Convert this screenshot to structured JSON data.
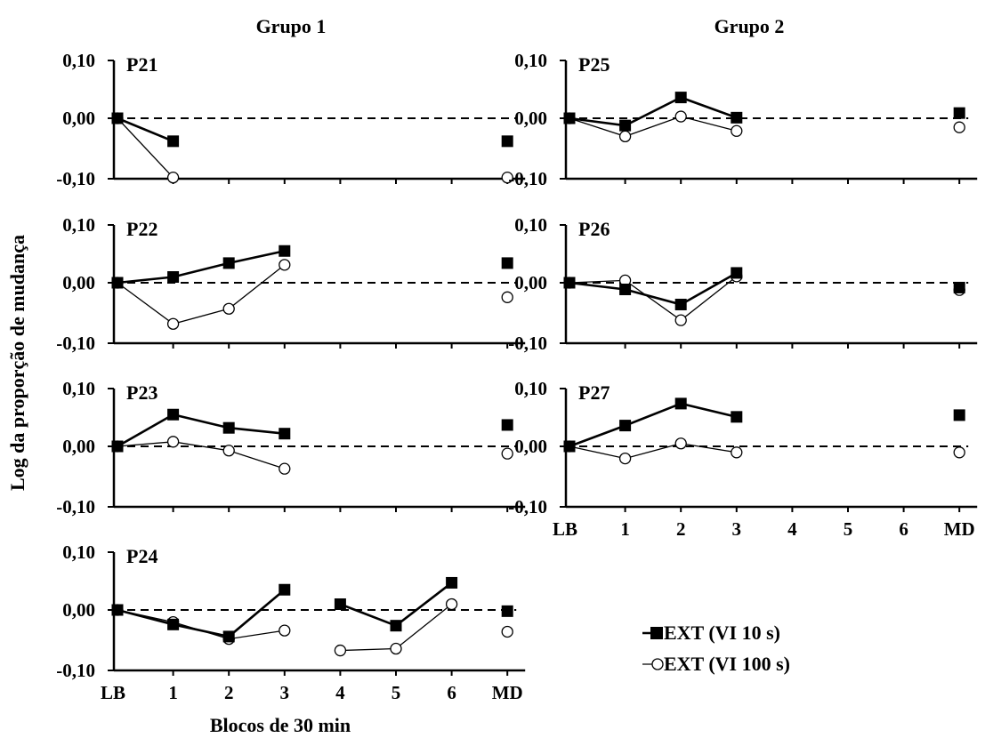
{
  "chart_data": {
    "type": "line",
    "group_titles": [
      "Grupo 1",
      "Grupo 2"
    ],
    "xlabel": "Blocos de 30 min",
    "ylabel": "Log da proporção de mudança",
    "categories": [
      "LB",
      "1",
      "2",
      "3",
      "4",
      "5",
      "6",
      "MD"
    ],
    "y_ticks": [
      "0,10",
      "0,00",
      "-0,10"
    ],
    "ylim": [
      -0.1,
      0.1
    ],
    "reference_line": 0,
    "grid": false,
    "legend": {
      "placement": "bottom-right",
      "entries": [
        "EXT (VI 10 s)",
        "EXT (VI 100 s)"
      ]
    },
    "series_styles": [
      {
        "marker": "filled-square",
        "color": "#000000"
      },
      {
        "marker": "open-circle",
        "color": "#000000"
      }
    ],
    "panels": [
      {
        "label": "P21",
        "group": "Grupo 1",
        "series": [
          {
            "name": "EXT (VI 10 s)",
            "values": [
              0,
              -0.038,
              null,
              null,
              null,
              null,
              null,
              -0.038
            ],
            "line_breaks": [
              2
            ]
          },
          {
            "name": "EXT (VI 100 s)",
            "values": [
              0,
              -0.098,
              null,
              null,
              null,
              null,
              null,
              -0.098
            ],
            "line_breaks": [
              2
            ]
          }
        ]
      },
      {
        "label": "P22",
        "group": "Grupo 1",
        "series": [
          {
            "name": "EXT (VI 10 s)",
            "values": [
              0,
              0.01,
              0.034,
              0.055,
              null,
              null,
              null,
              0.034
            ],
            "line_breaks": [
              4
            ]
          },
          {
            "name": "EXT (VI 100 s)",
            "values": [
              0,
              -0.068,
              -0.043,
              0.031,
              null,
              null,
              null,
              -0.024
            ],
            "line_breaks": [
              4
            ]
          }
        ]
      },
      {
        "label": "P23",
        "group": "Grupo 1",
        "series": [
          {
            "name": "EXT (VI 10 s)",
            "values": [
              0,
              0.055,
              0.032,
              0.022,
              null,
              null,
              null,
              0.037
            ],
            "line_breaks": [
              4
            ]
          },
          {
            "name": "EXT (VI 100 s)",
            "values": [
              0,
              0.008,
              -0.007,
              -0.037,
              null,
              null,
              null,
              -0.012
            ],
            "line_breaks": [
              4
            ]
          }
        ]
      },
      {
        "label": "P24",
        "group": "Grupo 1",
        "series": [
          {
            "name": "EXT (VI 10 s)",
            "values": [
              0,
              -0.024,
              -0.044,
              0.035,
              0.01,
              -0.026,
              0.047,
              -0.002
            ],
            "line_breaks": [
              4,
              7
            ]
          },
          {
            "name": "EXT (VI 100 s)",
            "values": [
              0,
              -0.02,
              -0.048,
              -0.034,
              -0.067,
              -0.064,
              0.01,
              -0.036
            ],
            "line_breaks": [
              4,
              7
            ]
          }
        ]
      },
      {
        "label": "P25",
        "group": "Grupo 2",
        "series": [
          {
            "name": "EXT (VI 10 s)",
            "values": [
              0,
              -0.012,
              0.036,
              0.001,
              null,
              null,
              null,
              0.009
            ],
            "line_breaks": [
              4
            ]
          },
          {
            "name": "EXT (VI 100 s)",
            "values": [
              0,
              -0.03,
              0.003,
              -0.021,
              null,
              null,
              null,
              -0.015
            ],
            "line_breaks": [
              4
            ]
          }
        ]
      },
      {
        "label": "P26",
        "group": "Grupo 2",
        "series": [
          {
            "name": "EXT (VI 10 s)",
            "values": [
              0,
              -0.011,
              -0.036,
              0.017,
              null,
              null,
              null,
              -0.008
            ],
            "line_breaks": [
              4
            ]
          },
          {
            "name": "EXT (VI 100 s)",
            "values": [
              0,
              0.004,
              -0.062,
              0.011,
              null,
              null,
              null,
              -0.012
            ],
            "line_breaks": [
              4
            ]
          }
        ]
      },
      {
        "label": "P27",
        "group": "Grupo 2",
        "series": [
          {
            "name": "EXT (VI 10 s)",
            "values": [
              0,
              0.036,
              0.074,
              0.051,
              null,
              null,
              null,
              0.054
            ],
            "line_breaks": [
              4
            ]
          },
          {
            "name": "EXT (VI 100 s)",
            "values": [
              0,
              -0.02,
              0.005,
              -0.01,
              null,
              null,
              null,
              -0.01
            ],
            "line_breaks": [
              4
            ]
          }
        ]
      }
    ]
  }
}
